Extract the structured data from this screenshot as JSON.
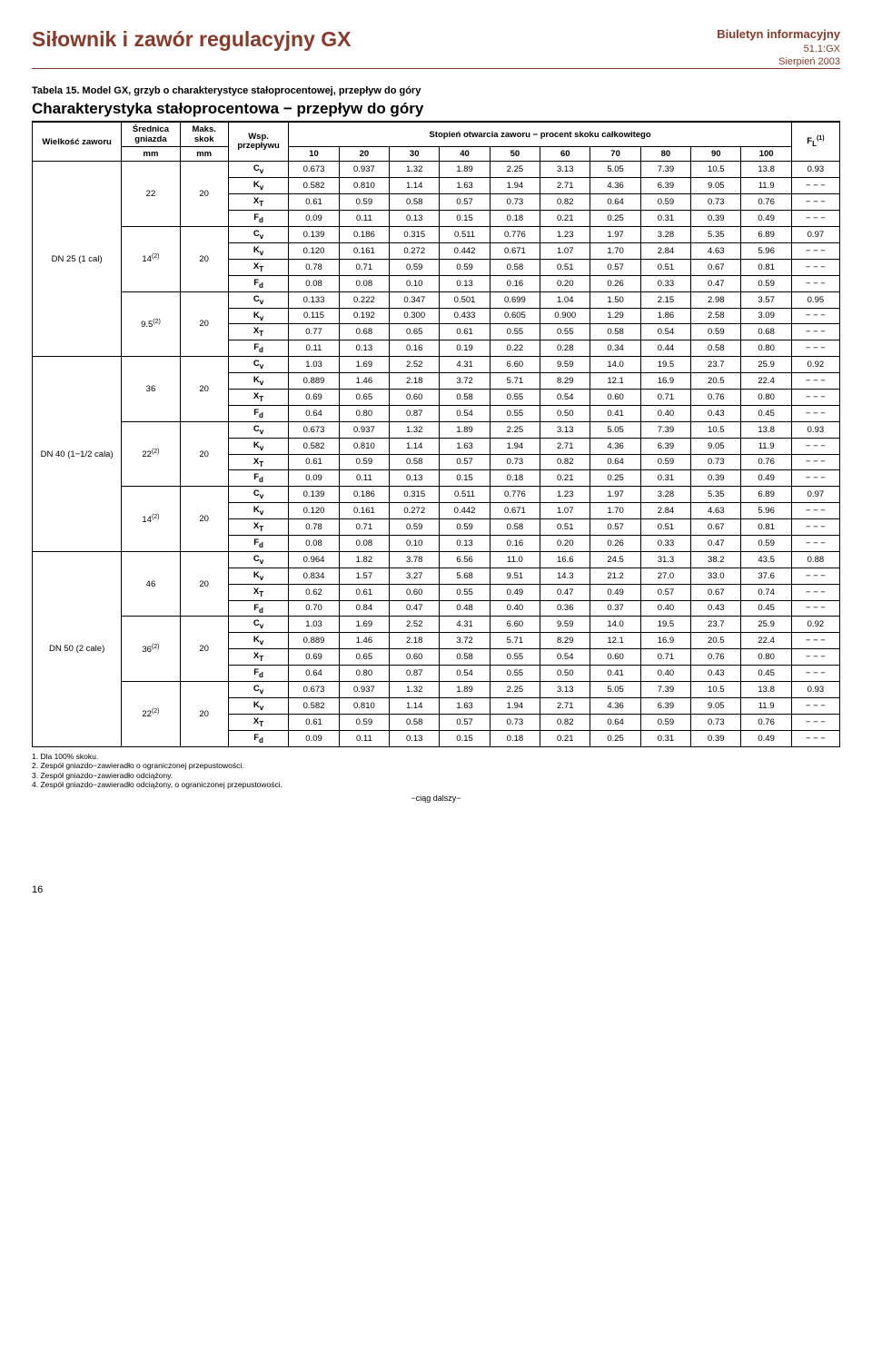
{
  "header": {
    "left": "Siłownik i zawór regulacyjny GX",
    "r1": "Biuletyn informacyjny",
    "r2": "51.1:GX",
    "r3": "Sierpień 2003"
  },
  "tabno": "Tabela 15. Model GX, grzyb o charakterystyce stałoprocentowej, przepływ do góry",
  "section": "Charakterystyka stałoprocentowa − przepływ do góry",
  "th": {
    "c1a": "Wielkość zaworu",
    "c2a": "Średnica gniazda",
    "c3a": "Maks. skok",
    "c4": "Wsp. przepływu",
    "span": "Stopień otwarcia zaworu − procent skoku całkowitego",
    "fl": "F",
    "flsub": "L",
    "flsup": "(1)",
    "c2b": "mm",
    "c3b": "mm",
    "p": [
      "10",
      "20",
      "30",
      "40",
      "50",
      "60",
      "70",
      "80",
      "90",
      "100"
    ]
  },
  "param": {
    "cv": "C",
    "cvs": "v",
    "kv": "K",
    "kvs": "v",
    "xt": "X",
    "xts": "T",
    "fd": "F",
    "fds": "d"
  },
  "groups": [
    {
      "valve": "DN 25 (1 cal)",
      "subs": [
        {
          "dia": "22",
          "str": "20",
          "rows": [
            [
              "0.673",
              "0.937",
              "1.32",
              "1.89",
              "2.25",
              "3.13",
              "5.05",
              "7.39",
              "10.5",
              "13.8",
              "0.93"
            ],
            [
              "0.582",
              "0.810",
              "1.14",
              "1.63",
              "1.94",
              "2.71",
              "4.36",
              "6.39",
              "9.05",
              "11.9",
              "− − −"
            ],
            [
              "0.61",
              "0.59",
              "0.58",
              "0.57",
              "0.73",
              "0.82",
              "0.64",
              "0.59",
              "0.73",
              "0.76",
              "− − −"
            ],
            [
              "0.09",
              "0.11",
              "0.13",
              "0.15",
              "0.18",
              "0.21",
              "0.25",
              "0.31",
              "0.39",
              "0.49",
              "− − −"
            ]
          ]
        },
        {
          "dia": "14",
          "diasup": "(2)",
          "str": "20",
          "rows": [
            [
              "0.139",
              "0.186",
              "0.315",
              "0.511",
              "0.776",
              "1.23",
              "1.97",
              "3.28",
              "5.35",
              "6.89",
              "0.97"
            ],
            [
              "0.120",
              "0.161",
              "0.272",
              "0.442",
              "0.671",
              "1.07",
              "1.70",
              "2.84",
              "4.63",
              "5.96",
              "− − −"
            ],
            [
              "0.78",
              "0.71",
              "0.59",
              "0.59",
              "0.58",
              "0.51",
              "0.57",
              "0.51",
              "0.67",
              "0.81",
              "− − −"
            ],
            [
              "0.08",
              "0.08",
              "0.10",
              "0.13",
              "0.16",
              "0.20",
              "0.26",
              "0.33",
              "0.47",
              "0.59",
              "− − −"
            ]
          ]
        },
        {
          "dia": "9.5",
          "diasup": "(2)",
          "str": "20",
          "rows": [
            [
              "0.133",
              "0.222",
              "0.347",
              "0.501",
              "0.699",
              "1.04",
              "1.50",
              "2.15",
              "2.98",
              "3.57",
              "0.95"
            ],
            [
              "0.115",
              "0.192",
              "0.300",
              "0.433",
              "0.605",
              "0.900",
              "1.29",
              "1.86",
              "2.58",
              "3.09",
              "− − −"
            ],
            [
              "0.77",
              "0.68",
              "0.65",
              "0.61",
              "0.55",
              "0.55",
              "0.58",
              "0.54",
              "0.59",
              "0.68",
              "− − −"
            ],
            [
              "0.11",
              "0.13",
              "0.16",
              "0.19",
              "0.22",
              "0.28",
              "0.34",
              "0.44",
              "0.58",
              "0.80",
              "− − −"
            ]
          ]
        }
      ]
    },
    {
      "valve": "DN 40 (1−1/2 cala)",
      "subs": [
        {
          "dia": "36",
          "str": "20",
          "rows": [
            [
              "1.03",
              "1.69",
              "2.52",
              "4.31",
              "6.60",
              "9.59",
              "14.0",
              "19.5",
              "23.7",
              "25.9",
              "0.92"
            ],
            [
              "0.889",
              "1.46",
              "2.18",
              "3.72",
              "5.71",
              "8.29",
              "12.1",
              "16.9",
              "20.5",
              "22.4",
              "− − −"
            ],
            [
              "0.69",
              "0.65",
              "0.60",
              "0.58",
              "0.55",
              "0.54",
              "0.60",
              "0.71",
              "0.76",
              "0.80",
              "− − −"
            ],
            [
              "0.64",
              "0.80",
              "0.87",
              "0.54",
              "0.55",
              "0.50",
              "0.41",
              "0.40",
              "0.43",
              "0.45",
              "− − −"
            ]
          ]
        },
        {
          "dia": "22",
          "diasup": "(2)",
          "str": "20",
          "rows": [
            [
              "0.673",
              "0.937",
              "1.32",
              "1.89",
              "2.25",
              "3.13",
              "5.05",
              "7.39",
              "10.5",
              "13.8",
              "0.93"
            ],
            [
              "0.582",
              "0.810",
              "1.14",
              "1.63",
              "1.94",
              "2.71",
              "4.36",
              "6.39",
              "9.05",
              "11.9",
              "− − −"
            ],
            [
              "0.61",
              "0.59",
              "0.58",
              "0.57",
              "0.73",
              "0.82",
              "0.64",
              "0.59",
              "0.73",
              "0.76",
              "− − −"
            ],
            [
              "0.09",
              "0.11",
              "0.13",
              "0.15",
              "0.18",
              "0.21",
              "0.25",
              "0.31",
              "0.39",
              "0.49",
              "− − −"
            ]
          ]
        },
        {
          "dia": "14",
          "diasup": "(2)",
          "str": "20",
          "rows": [
            [
              "0.139",
              "0.186",
              "0.315",
              "0.511",
              "0.776",
              "1.23",
              "1.97",
              "3.28",
              "5.35",
              "6.89",
              "0.97"
            ],
            [
              "0.120",
              "0.161",
              "0.272",
              "0.442",
              "0.671",
              "1.07",
              "1.70",
              "2.84",
              "4.63",
              "5.96",
              "− − −"
            ],
            [
              "0.78",
              "0.71",
              "0.59",
              "0.59",
              "0.58",
              "0.51",
              "0.57",
              "0.51",
              "0.67",
              "0.81",
              "− − −"
            ],
            [
              "0.08",
              "0.08",
              "0.10",
              "0.13",
              "0.16",
              "0.20",
              "0.26",
              "0.33",
              "0.47",
              "0.59",
              "− − −"
            ]
          ]
        }
      ]
    },
    {
      "valve": "DN 50 (2 cale)",
      "subs": [
        {
          "dia": "46",
          "str": "20",
          "rows": [
            [
              "0.964",
              "1.82",
              "3.78",
              "6.56",
              "11.0",
              "16.6",
              "24.5",
              "31.3",
              "38.2",
              "43.5",
              "0.88"
            ],
            [
              "0.834",
              "1.57",
              "3.27",
              "5.68",
              "9.51",
              "14.3",
              "21.2",
              "27.0",
              "33.0",
              "37.6",
              "− − −"
            ],
            [
              "0.62",
              "0.61",
              "0.60",
              "0.55",
              "0.49",
              "0.47",
              "0.49",
              "0.57",
              "0.67",
              "0.74",
              "− − −"
            ],
            [
              "0.70",
              "0.84",
              "0.47",
              "0.48",
              "0.40",
              "0.36",
              "0.37",
              "0.40",
              "0.43",
              "0.45",
              "− − −"
            ]
          ]
        },
        {
          "dia": "36",
          "diasup": "(2)",
          "str": "20",
          "rows": [
            [
              "1.03",
              "1.69",
              "2.52",
              "4.31",
              "6.60",
              "9.59",
              "14.0",
              "19.5",
              "23.7",
              "25.9",
              "0.92"
            ],
            [
              "0.889",
              "1.46",
              "2.18",
              "3.72",
              "5.71",
              "8.29",
              "12.1",
              "16.9",
              "20.5",
              "22.4",
              "− − −"
            ],
            [
              "0.69",
              "0.65",
              "0.60",
              "0.58",
              "0.55",
              "0.54",
              "0.60",
              "0.71",
              "0.76",
              "0.80",
              "− − −"
            ],
            [
              "0.64",
              "0.80",
              "0.87",
              "0.54",
              "0.55",
              "0.50",
              "0.41",
              "0.40",
              "0.43",
              "0.45",
              "− − −"
            ]
          ]
        },
        {
          "dia": "22",
          "diasup": "(2)",
          "str": "20",
          "rows": [
            [
              "0.673",
              "0.937",
              "1.32",
              "1.89",
              "2.25",
              "3.13",
              "5.05",
              "7.39",
              "10.5",
              "13.8",
              "0.93"
            ],
            [
              "0.582",
              "0.810",
              "1.14",
              "1.63",
              "1.94",
              "2.71",
              "4.36",
              "6.39",
              "9.05",
              "11.9",
              "− − −"
            ],
            [
              "0.61",
              "0.59",
              "0.58",
              "0.57",
              "0.73",
              "0.82",
              "0.64",
              "0.59",
              "0.73",
              "0.76",
              "− − −"
            ],
            [
              "0.09",
              "0.11",
              "0.13",
              "0.15",
              "0.18",
              "0.21",
              "0.25",
              "0.31",
              "0.39",
              "0.49",
              "− − −"
            ]
          ]
        }
      ]
    }
  ],
  "notes": [
    "1. Dla 100% skoku.",
    "2. Zespół gniazdo−zawieradło o ograniczonej przepustowości.",
    "3. Zespół gniazdo−zawieradło odciążony.",
    "4. Zespół gniazdo−zawieradło odciążony, o ograniczonej przepustowości."
  ],
  "ciag": "−ciąg dalszy−",
  "page": "16"
}
